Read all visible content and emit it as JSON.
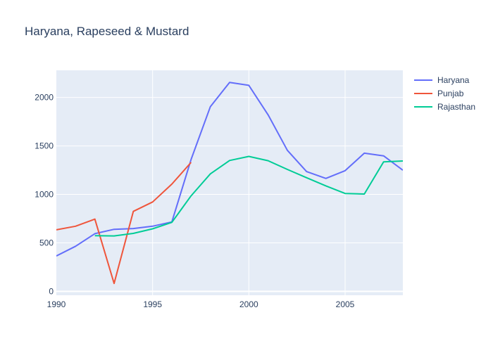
{
  "chart_data": {
    "type": "line",
    "title": "Haryana, Rapeseed & Mustard",
    "xlabel": "",
    "ylabel": "",
    "xlim": [
      1990,
      2008
    ],
    "ylim": [
      -40,
      2280
    ],
    "xticks": [
      1990,
      1995,
      2000,
      2005
    ],
    "yticks": [
      0,
      500,
      1000,
      1500,
      2000
    ],
    "grid": true,
    "legend_position": "top-right",
    "series": [
      {
        "name": "Haryana",
        "color": "#636efa",
        "x": [
          1990,
          1991,
          1992,
          1993,
          1994,
          1995,
          1996,
          1997,
          1998,
          1999,
          2000,
          2001,
          2002,
          2003,
          2004,
          2005,
          2006,
          2007,
          2008
        ],
        "y": [
          365,
          465,
          595,
          640,
          648,
          672,
          716,
          1360,
          1905,
          2155,
          2125,
          1820,
          1455,
          1235,
          1165,
          1245,
          1425,
          1398,
          1250
        ]
      },
      {
        "name": "Punjab",
        "color": "#ef553b",
        "x": [
          1990,
          1991,
          1992,
          1993,
          1994,
          1995,
          1996,
          1997
        ],
        "y": [
          635,
          672,
          745,
          82,
          825,
          922,
          1106,
          1330
        ]
      },
      {
        "name": "Rajasthan",
        "color": "#00cc96",
        "x": [
          1992,
          1993,
          1994,
          1995,
          1996,
          1997,
          1998,
          1999,
          2000,
          2001,
          2002,
          2003,
          2004,
          2005,
          2006,
          2007,
          2008
        ],
        "y": [
          575,
          572,
          598,
          645,
          712,
          985,
          1212,
          1350,
          1392,
          1348,
          1258,
          1172,
          1088,
          1010,
          1004,
          1336,
          1345
        ]
      }
    ]
  }
}
